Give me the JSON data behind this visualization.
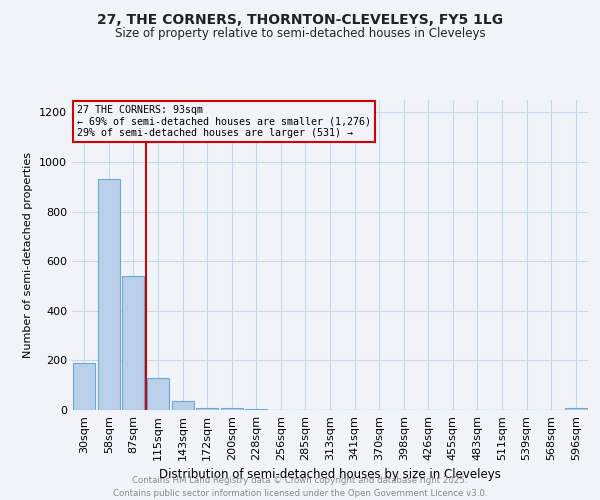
{
  "title_line1": "27, THE CORNERS, THORNTON-CLEVELEYS, FY5 1LG",
  "title_line2": "Size of property relative to semi-detached houses in Cleveleys",
  "xlabel": "Distribution of semi-detached houses by size in Cleveleys",
  "ylabel": "Number of semi-detached properties",
  "bin_labels": [
    "30sqm",
    "58sqm",
    "87sqm",
    "115sqm",
    "143sqm",
    "172sqm",
    "200sqm",
    "228sqm",
    "256sqm",
    "285sqm",
    "313sqm",
    "341sqm",
    "370sqm",
    "398sqm",
    "426sqm",
    "455sqm",
    "483sqm",
    "511sqm",
    "539sqm",
    "568sqm",
    "596sqm"
  ],
  "bin_values": [
    190,
    930,
    540,
    130,
    35,
    10,
    8,
    5,
    0,
    0,
    0,
    0,
    0,
    0,
    0,
    0,
    0,
    0,
    0,
    0,
    8
  ],
  "bar_color": "#b8d0e8",
  "bar_edgecolor": "#6aaad4",
  "vline_color": "#cc0000",
  "vline_x": 2.5,
  "annotation_title": "27 THE CORNERS: 93sqm",
  "annotation_line2": "← 69% of semi-detached houses are smaller (1,276)",
  "annotation_line3": "29% of semi-detached houses are larger (531) →",
  "annotation_color": "#cc0000",
  "ylim": [
    0,
    1250
  ],
  "yticks": [
    0,
    200,
    400,
    600,
    800,
    1000,
    1200
  ],
  "footer_line1": "Contains HM Land Registry data © Crown copyright and database right 2025.",
  "footer_line2": "Contains public sector information licensed under the Open Government Licence v3.0.",
  "bg_color": "#f0f4f8",
  "grid_color": "#c8d8e8"
}
